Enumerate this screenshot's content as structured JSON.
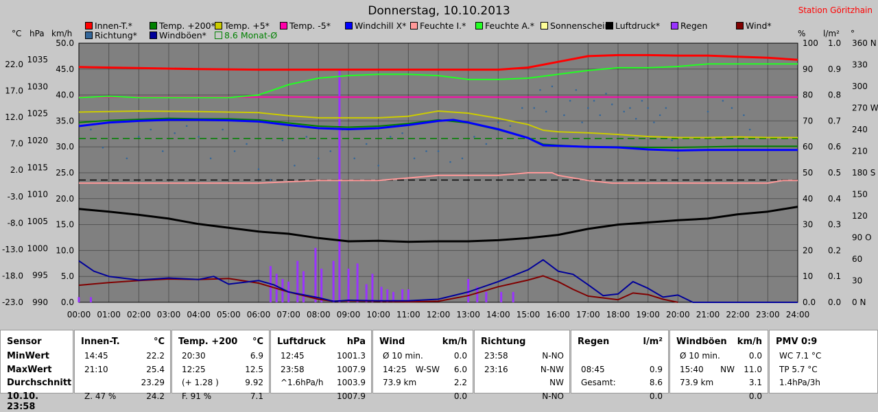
{
  "title": "Donnerstag, 10.10.2013",
  "station": "Station Göritzhain",
  "axis_units": {
    "celsius": "°C",
    "hpa": "hPa",
    "kmh": "km/h",
    "percent": "%",
    "lm2": "l/m²",
    "deg": "°"
  },
  "legend": [
    {
      "label": "Innen-T.*",
      "color": "#ff0000"
    },
    {
      "label": "Temp. +200*",
      "color": "#008000"
    },
    {
      "label": "Temp. +5*",
      "color": "#cccc00"
    },
    {
      "label": "Temp. -5*",
      "color": "#ff00aa"
    },
    {
      "label": "Windchill X*",
      "color": "#0000ff"
    },
    {
      "label": "Feuchte I.*",
      "color": "#ff9999"
    },
    {
      "label": "Feuchte A.*",
      "color": "#22ff22"
    },
    {
      "label": "Sonnenschein",
      "color": "#ffff99"
    },
    {
      "label": "Luftdruck*",
      "color": "#000000"
    },
    {
      "label": "Regen",
      "color": "#9933ff"
    },
    {
      "label": "Wind*",
      "color": "#800000"
    },
    {
      "label": "Richtung*",
      "color": "#336699"
    },
    {
      "label": "Windböen*",
      "color": "#000099"
    },
    {
      "label": "8.6 Monat-Ø",
      "color": "#008000"
    }
  ],
  "chart_data": {
    "type": "line",
    "title": "Donnerstag, 10.10.2013",
    "x_ticks": [
      "00:00",
      "01:00",
      "02:00",
      "03:00",
      "04:00",
      "05:00",
      "06:00",
      "07:00",
      "08:00",
      "09:00",
      "10:00",
      "11:00",
      "12:00",
      "13:00",
      "14:00",
      "15:00",
      "16:00",
      "17:00",
      "18:00",
      "19:00",
      "20:00",
      "21:00",
      "22:00",
      "23:00",
      "24:00"
    ],
    "xlim": [
      0,
      24
    ],
    "y_axes": {
      "celsius": {
        "ticks": [
          "22.0",
          "17.0",
          "12.0",
          "7.0",
          "2.0",
          "-3.0",
          "-8.0",
          "-13.0",
          "-18.0",
          "-23.0"
        ],
        "ylim": [
          -23,
          27
        ]
      },
      "hpa": {
        "ticks": [
          "1035",
          "1030",
          "1025",
          "1020",
          "1015",
          "1010",
          "1005",
          "1000",
          "995",
          "990"
        ],
        "ylim": [
          990,
          1038
        ]
      },
      "kmh": {
        "ticks": [
          "50.0",
          "45.0",
          "40.0",
          "35.0",
          "30.0",
          "25.0",
          "20.0",
          "15.0",
          "10.0",
          "5.0",
          "0.0"
        ],
        "ylim": [
          0,
          50
        ]
      },
      "percent": {
        "ticks": [
          "100",
          "90",
          "80",
          "70",
          "60",
          "50",
          "40",
          "30",
          "20",
          "10",
          "0.0"
        ],
        "ylim": [
          0,
          100
        ]
      },
      "lm2": {
        "ticks": [
          "1.0",
          "0.9",
          "0.8",
          "0.7",
          "0.6",
          "0.5",
          "0.4",
          "0.3",
          "0.2",
          "0.1",
          "0.0"
        ],
        "ylim": [
          0,
          1
        ]
      },
      "deg": {
        "ticks": [
          "360 N",
          "330",
          "300",
          "270 W",
          "240",
          "210",
          "180 S",
          "150",
          "120",
          "90 O",
          "60",
          "30",
          "0 N"
        ],
        "ylim": [
          0,
          360
        ]
      }
    },
    "grid": true,
    "series": [
      {
        "name": "Innen-T.*",
        "axis": "celsius",
        "color": "#ff0000",
        "x": [
          0,
          2,
          4,
          6,
          8,
          10,
          12,
          14,
          15,
          16,
          17,
          18,
          19,
          20,
          21,
          22,
          23,
          24
        ],
        "y": [
          22.4,
          22.2,
          22.0,
          21.9,
          21.9,
          21.9,
          21.9,
          21.9,
          22.3,
          23.4,
          24.5,
          24.7,
          24.7,
          24.6,
          24.6,
          24.4,
          24.2,
          23.8
        ]
      },
      {
        "name": "Temp. +200*",
        "axis": "celsius",
        "color": "#008000",
        "x": [
          0,
          1,
          2,
          3,
          4,
          5,
          6,
          7,
          8,
          9,
          10,
          11,
          12,
          13,
          14,
          15,
          15.5,
          16,
          17,
          18,
          19,
          20,
          21,
          22,
          23,
          24
        ],
        "y": [
          11.7,
          12.1,
          12.3,
          12.5,
          12.4,
          12.4,
          12.2,
          11.6,
          11.0,
          10.8,
          11.0,
          11.5,
          12.2,
          11.6,
          10.3,
          8.7,
          7.5,
          7.3,
          7.0,
          7.0,
          6.9,
          6.9,
          7.0,
          7.1,
          7.1,
          7.1
        ]
      },
      {
        "name": "Temp. +5*",
        "axis": "celsius",
        "color": "#cccc00",
        "x": [
          0,
          2,
          4,
          6,
          7,
          8,
          9,
          10,
          11,
          12,
          13,
          14,
          15,
          15.5,
          16,
          17,
          18,
          19,
          20,
          21,
          22,
          23,
          24
        ],
        "y": [
          13.7,
          13.9,
          13.8,
          13.6,
          13.0,
          12.6,
          12.6,
          12.6,
          12.9,
          13.9,
          13.5,
          12.5,
          11.3,
          10.2,
          9.9,
          9.7,
          9.4,
          9.0,
          8.8,
          8.8,
          8.9,
          8.8,
          8.8
        ]
      },
      {
        "name": "Temp. -5*",
        "axis": "celsius",
        "color": "#ff00aa",
        "x": [
          0,
          24
        ],
        "y": [
          16.6,
          16.6
        ]
      },
      {
        "name": "Windchill X*",
        "axis": "celsius",
        "color": "#0000ff",
        "x": [
          0,
          1,
          2,
          3,
          4,
          5,
          6,
          7,
          8,
          9,
          10,
          11,
          12,
          12.5,
          13,
          14,
          15,
          15.5,
          16,
          17,
          18,
          19,
          20,
          21,
          22,
          23,
          24
        ],
        "y": [
          11.0,
          11.7,
          12.0,
          12.2,
          12.2,
          12.1,
          11.9,
          11.2,
          10.6,
          10.4,
          10.6,
          11.2,
          12.0,
          12.2,
          11.7,
          10.4,
          8.7,
          7.3,
          7.2,
          7.0,
          6.9,
          6.5,
          6.3,
          6.4,
          6.4,
          6.4,
          6.4
        ]
      },
      {
        "name": "Feuchte I.*",
        "axis": "percent",
        "color": "#ff9999",
        "x": [
          0,
          2,
          4,
          6,
          8,
          10,
          11,
          12,
          13,
          14,
          15,
          15.8,
          16,
          17,
          17.8,
          18,
          19,
          20,
          21,
          22,
          23,
          23.5,
          24
        ],
        "y": [
          46,
          46,
          46,
          46,
          47,
          47,
          48,
          49,
          49,
          49,
          50,
          50,
          49,
          47,
          46,
          46,
          46,
          46,
          46,
          46,
          46,
          47,
          47
        ]
      },
      {
        "name": "Feuchte A.*",
        "axis": "percent",
        "color": "#22ff22",
        "x": [
          0,
          1,
          2,
          3,
          4,
          5,
          6,
          7,
          8,
          9,
          10,
          11,
          12,
          13,
          14,
          15,
          16,
          17,
          18,
          19,
          20,
          21,
          22,
          23,
          24
        ],
        "y": [
          79,
          79.5,
          79,
          79,
          79,
          79,
          80,
          84,
          86.5,
          87.5,
          88,
          88,
          87.5,
          86,
          86,
          86.5,
          88,
          89.5,
          90.5,
          90.5,
          91,
          92,
          92,
          92,
          92
        ]
      },
      {
        "name": "Luftdruck*",
        "axis": "hpa",
        "color": "#000000",
        "x": [
          0,
          1,
          2,
          3,
          4,
          5,
          6,
          7,
          8,
          9,
          10,
          11,
          12,
          13,
          14,
          15,
          16,
          17,
          18,
          19,
          20,
          21,
          22,
          23,
          24
        ],
        "y": [
          1007.3,
          1006.8,
          1006.2,
          1005.5,
          1004.5,
          1003.8,
          1003.1,
          1002.7,
          1001.9,
          1001.3,
          1001.4,
          1001.2,
          1001.3,
          1001.3,
          1001.5,
          1001.9,
          1002.5,
          1003.6,
          1004.4,
          1004.8,
          1005.2,
          1005.5,
          1006.3,
          1006.8,
          1007.7
        ]
      },
      {
        "name": "Wind*",
        "axis": "kmh",
        "color": "#800000",
        "x": [
          0,
          1,
          2,
          3,
          4,
          5,
          6,
          7,
          8,
          8.5,
          9,
          10,
          11,
          12,
          13,
          14,
          15,
          15.5,
          16,
          16.5,
          17,
          18,
          18.5,
          19,
          19.5,
          20
        ],
        "y": [
          3.3,
          3.8,
          4.2,
          4.5,
          4.4,
          4.6,
          3.7,
          2.0,
          0.6,
          0.2,
          0.3,
          0.2,
          0.1,
          0.2,
          1.3,
          3.0,
          4.3,
          5.1,
          4.0,
          2.5,
          1.2,
          0.5,
          1.8,
          1.5,
          0.6,
          0.0
        ]
      },
      {
        "name": "Windböen*",
        "axis": "kmh",
        "color": "#000099",
        "x": [
          0,
          0.5,
          1,
          2,
          3,
          4,
          4.5,
          5,
          6,
          6.5,
          7,
          8,
          8.5,
          9,
          10,
          11,
          12,
          13,
          14,
          15,
          15.5,
          16,
          16.5,
          17,
          17.5,
          18,
          18.5,
          19,
          19.5,
          20,
          20.5,
          21,
          21.5,
          22,
          23,
          24
        ],
        "y": [
          8.0,
          6.0,
          5.0,
          4.3,
          4.7,
          4.4,
          5.0,
          3.5,
          4.2,
          3.4,
          2.0,
          0.9,
          0.2,
          0.4,
          0.3,
          0.3,
          0.6,
          2.0,
          4.0,
          6.3,
          8.2,
          6.0,
          5.4,
          3.4,
          1.3,
          1.6,
          4.0,
          2.7,
          1.0,
          1.4,
          0.0,
          0.0,
          0.0,
          0.0,
          0.0,
          0.0
        ]
      },
      {
        "name": "Regen",
        "axis": "lm2",
        "color": "#9933ff",
        "kind": "bars",
        "x": [
          0,
          0.4,
          6.4,
          6.6,
          6.8,
          7.0,
          7.3,
          7.5,
          7.9,
          8.1,
          8.5,
          8.7,
          9.0,
          9.3,
          9.6,
          9.8,
          10.1,
          10.3,
          10.5,
          10.8,
          11.0,
          13.0,
          13.3,
          13.6,
          14.1,
          14.5
        ],
        "y": [
          0.02,
          0.02,
          0.14,
          0.11,
          0.09,
          0.08,
          0.16,
          0.12,
          0.21,
          0.13,
          0.16,
          0.9,
          0.13,
          0.15,
          0.07,
          0.11,
          0.06,
          0.05,
          0.04,
          0.05,
          0.05,
          0.09,
          0.06,
          0.04,
          0.04,
          0.04
        ]
      },
      {
        "name": "Richtung*",
        "axis": "deg",
        "color": "#336699",
        "kind": "scatter",
        "x": [
          0.4,
          0.8,
          1.2,
          1.6,
          2.0,
          2.4,
          2.8,
          3.2,
          3.6,
          4.0,
          4.4,
          4.8,
          5.2,
          5.6,
          6.0,
          6.4,
          6.8,
          7.2,
          7.6,
          8.0,
          8.4,
          8.8,
          9.2,
          9.6,
          10.0,
          10.4,
          10.8,
          11.2,
          11.6,
          12.0,
          12.4,
          12.8,
          13.2,
          13.6,
          14.0,
          14.4,
          14.8,
          15.2,
          15.4,
          15.6,
          15.8,
          16.0,
          16.2,
          16.4,
          16.6,
          16.8,
          17.0,
          17.2,
          17.4,
          17.6,
          17.8,
          18.0,
          18.2,
          18.4,
          18.6,
          18.8,
          19.0,
          19.2,
          19.4,
          19.6,
          19.8,
          20.0,
          21.0,
          21.5,
          21.8,
          22.0,
          22.2,
          22.4
        ],
        "y": [
          240,
          215,
          250,
          200,
          230,
          240,
          210,
          235,
          245,
          230,
          200,
          240,
          210,
          220,
          185,
          170,
          225,
          190,
          230,
          200,
          210,
          240,
          200,
          220,
          190,
          230,
          235,
          200,
          210,
          210,
          195,
          200,
          230,
          220,
          250,
          245,
          270,
          270,
          295,
          265,
          300,
          285,
          260,
          280,
          295,
          250,
          270,
          280,
          260,
          290,
          275,
          285,
          265,
          270,
          255,
          280,
          270,
          250,
          260,
          270,
          225,
          200,
          265,
          280,
          270,
          285,
          260,
          240
        ]
      }
    ],
    "reference_lines": [
      {
        "name": "8.6 Monat-Ø",
        "axis": "celsius",
        "value": 8.6,
        "style": "dashed",
        "color": "#008000"
      },
      {
        "axis": "celsius",
        "value": 0.6,
        "style": "dashed",
        "color": "#000000"
      }
    ]
  },
  "panels": [
    {
      "header": "Sensor",
      "unit": "",
      "rows": [
        [
          "MinWert",
          "",
          ""
        ],
        [
          "MaxWert",
          "",
          ""
        ],
        [
          "Durchschnitt",
          "",
          ""
        ],
        [
          "10.10. 23:58",
          "",
          ""
        ]
      ]
    },
    {
      "header": "Innen-T.",
      "unit": "°C",
      "rows": [
        [
          "14:45",
          "",
          "22.2"
        ],
        [
          "21:10",
          "",
          "25.4"
        ],
        [
          "",
          "",
          "23.29"
        ],
        [
          "Z. 47 %",
          "",
          "24.2"
        ]
      ]
    },
    {
      "header": "Temp. +200",
      "unit": "°C",
      "rows": [
        [
          "20:30",
          "",
          "6.9"
        ],
        [
          "12:25",
          "",
          "12.5"
        ],
        [
          "(+ 1.28 )",
          "",
          "9.92"
        ],
        [
          "F. 91 %",
          "",
          "7.1"
        ]
      ]
    },
    {
      "header": "Luftdruck",
      "unit": "hPa",
      "rows": [
        [
          "12:45",
          "",
          "1001.3"
        ],
        [
          "23:58",
          "",
          "1007.9"
        ],
        [
          "^1.6hPa/h",
          "",
          "1003.9"
        ],
        [
          "",
          "",
          "1007.9"
        ]
      ]
    },
    {
      "header": "Wind",
      "unit": "km/h",
      "rows": [
        [
          "Ø 10 min.",
          "",
          "0.0"
        ],
        [
          "14:25",
          "W-SW",
          "6.0"
        ],
        [
          "73.9 km",
          "",
          "2.2"
        ],
        [
          "",
          "",
          "0.0"
        ]
      ]
    },
    {
      "header": "Richtung",
      "unit": "",
      "rows": [
        [
          "23:58",
          "",
          "N-NO"
        ],
        [
          "23:16",
          "",
          "N-NW"
        ],
        [
          "",
          "",
          "NW"
        ],
        [
          "",
          "",
          "N-NO"
        ]
      ]
    },
    {
      "header": "Regen",
      "unit": "l/m²",
      "rows": [
        [
          "",
          "",
          ""
        ],
        [
          "08:45",
          "",
          "0.9"
        ],
        [
          "Gesamt:",
          "",
          "8.6"
        ],
        [
          "",
          "",
          "0.0"
        ]
      ]
    },
    {
      "header": "Windböen",
      "unit": "km/h",
      "rows": [
        [
          "Ø 10 min.",
          "",
          "0.0"
        ],
        [
          "15:40",
          "NW",
          "11.0"
        ],
        [
          "73.9 km",
          "",
          "3.1"
        ],
        [
          "",
          "",
          "0.0"
        ]
      ]
    },
    {
      "header": "PMV 0:9",
      "unit": "",
      "rows": [
        [
          "WC 7.1 °C",
          "",
          ""
        ],
        [
          "TP 5.7 °C",
          "",
          ""
        ],
        [
          "1.4hPa/3h",
          "",
          ""
        ],
        [
          "",
          "",
          ""
        ]
      ]
    }
  ]
}
